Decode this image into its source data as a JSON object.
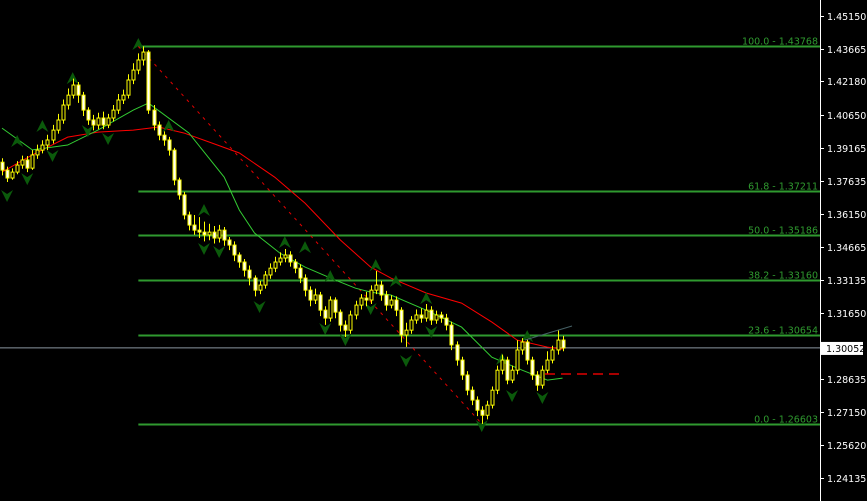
{
  "chart_data": {
    "type": "candlestick",
    "ylim": [
      1.2345,
      1.459
    ],
    "y_ticks": [
      "1.45150",
      "1.43665",
      "1.42180",
      "1.40650",
      "1.39165",
      "1.37635",
      "1.36150",
      "1.34665",
      "1.33135",
      "1.31650",
      "1.28635",
      "1.27150",
      "1.25620",
      "1.24135"
    ],
    "current_price": "1.30052",
    "colors": {
      "background": "#000000",
      "candle": "#ffff00",
      "bear_body": "#ffffff",
      "fast_ma": "#33cc33",
      "slow_ma": "#ff0000",
      "fib": "#2f9a2f",
      "fractal": "#0b5a0b",
      "bid_line": "#8a96a0"
    },
    "first_open": 1.385,
    "close": [
      1.3814,
      1.3778,
      1.3805,
      1.3837,
      1.386,
      1.3823,
      1.3883,
      1.3905,
      1.3928,
      1.3951,
      1.3996,
      1.4042,
      1.411,
      1.4155,
      1.4201,
      1.4155,
      1.4087,
      1.4042,
      1.4019,
      1.4051,
      1.4019,
      1.4051,
      1.4087,
      1.4133,
      1.4155,
      1.4224,
      1.4269,
      1.4315,
      1.4351,
      1.4087,
      1.4019,
      1.3973,
      1.3951,
      1.3905,
      1.3769,
      1.3701,
      1.361,
      1.3564,
      1.3541,
      1.3532,
      1.3519,
      1.3532,
      1.3505,
      1.3541,
      1.3496,
      1.3473,
      1.3428,
      1.3396,
      1.3359,
      1.3323,
      1.3268,
      1.3291,
      1.3337,
      1.3368,
      1.3396,
      1.3414,
      1.3428,
      1.3396,
      1.3368,
      1.3323,
      1.3268,
      1.3223,
      1.3246,
      1.3177,
      1.3141,
      1.3223,
      1.3168,
      1.3109,
      1.3086,
      1.3155,
      1.32,
      1.3232,
      1.3223,
      1.3268,
      1.3291,
      1.3246,
      1.32,
      1.3223,
      1.3177,
      1.3064,
      1.3086,
      1.3132,
      1.3155,
      1.3141,
      1.3177,
      1.3132,
      1.3155,
      1.3141,
      1.3109,
      1.3019,
      1.295,
      1.2882,
      1.2813,
      1.2768,
      1.2722,
      1.2699,
      1.2745,
      1.2813,
      1.2904,
      1.295,
      1.2859,
      1.2904,
      1.2996,
      1.3032,
      1.295,
      1.2882,
      1.2836,
      1.2904,
      1.295,
      1.2996,
      1.3041,
      1.3005
    ],
    "high": [
      1.3868,
      1.383,
      1.3822,
      1.3855,
      1.388,
      1.3878,
      1.3905,
      1.393,
      1.395,
      1.3975,
      1.402,
      1.407,
      1.4135,
      1.4185,
      1.423,
      1.4215,
      1.417,
      1.41,
      1.4065,
      1.4075,
      1.408,
      1.407,
      1.411,
      1.416,
      1.418,
      1.425,
      1.43,
      1.4345,
      1.4377,
      1.436,
      1.411,
      1.4035,
      1.399,
      1.3965,
      1.3915,
      1.378,
      1.3715,
      1.3625,
      1.361,
      1.36,
      1.358,
      1.357,
      1.356,
      1.3565,
      1.3555,
      1.351,
      1.349,
      1.344,
      1.341,
      1.338,
      1.3335,
      1.331,
      1.3355,
      1.339,
      1.342,
      1.344,
      1.3455,
      1.3445,
      1.341,
      1.3385,
      1.334,
      1.3285,
      1.3275,
      1.326,
      1.3195,
      1.324,
      1.3235,
      1.318,
      1.313,
      1.3175,
      1.322,
      1.325,
      1.326,
      1.329,
      1.3355,
      1.331,
      1.3265,
      1.3245,
      1.324,
      1.319,
      1.312,
      1.315,
      1.318,
      1.3185,
      1.3205,
      1.3195,
      1.3175,
      1.317,
      1.316,
      1.3125,
      1.3035,
      1.2965,
      1.29,
      1.283,
      1.2785,
      1.274,
      1.2765,
      1.283,
      1.2925,
      1.2975,
      1.2965,
      1.2925,
      1.304,
      1.305,
      1.3045,
      1.2965,
      1.29,
      1.2925,
      1.299,
      1.3015,
      1.3085,
      1.306
    ],
    "low": [
      1.379,
      1.376,
      1.377,
      1.3795,
      1.382,
      1.3805,
      1.3815,
      1.3865,
      1.389,
      1.3905,
      1.3935,
      1.398,
      1.4025,
      1.409,
      1.414,
      1.412,
      1.406,
      1.402,
      1.3995,
      1.4,
      1.4,
      1.4005,
      1.4035,
      1.407,
      1.4115,
      1.414,
      1.4205,
      1.425,
      1.429,
      1.407,
      1.3995,
      1.395,
      1.3925,
      1.388,
      1.3745,
      1.368,
      1.359,
      1.354,
      1.352,
      1.3505,
      1.349,
      1.3495,
      1.348,
      1.3485,
      1.347,
      1.345,
      1.34,
      1.337,
      1.333,
      1.329,
      1.324,
      1.325,
      1.3275,
      1.332,
      1.335,
      1.338,
      1.3395,
      1.3375,
      1.3345,
      1.33,
      1.324,
      1.3195,
      1.3205,
      1.315,
      1.311,
      1.3125,
      1.314,
      1.308,
      1.3055,
      1.307,
      1.3135,
      1.318,
      1.3195,
      1.3205,
      1.325,
      1.322,
      1.3175,
      1.3185,
      1.315,
      1.303,
      1.301,
      1.307,
      1.3115,
      1.312,
      1.3125,
      1.311,
      1.3115,
      1.312,
      1.3085,
      1.2995,
      1.2925,
      1.286,
      1.279,
      1.2745,
      1.2695,
      1.266,
      1.268,
      1.273,
      1.2795,
      1.2885,
      1.284,
      1.2845,
      1.2885,
      1.2975,
      1.293,
      1.286,
      1.281,
      1.282,
      1.2885,
      1.2935,
      1.2975,
      1.299
    ],
    "fast_ma": [
      [
        0,
        1.4005
      ],
      [
        6,
        1.3906
      ],
      [
        13,
        1.3928
      ],
      [
        19,
        1.3996
      ],
      [
        26,
        1.4087
      ],
      [
        29,
        1.4119
      ],
      [
        37,
        1.3983
      ],
      [
        44,
        1.3782
      ],
      [
        47,
        1.3632
      ],
      [
        50,
        1.3528
      ],
      [
        55,
        1.3437
      ],
      [
        60,
        1.3373
      ],
      [
        66,
        1.3314
      ],
      [
        70,
        1.3277
      ],
      [
        73,
        1.3259
      ],
      [
        77,
        1.3246
      ],
      [
        84,
        1.3177
      ],
      [
        91,
        1.31
      ],
      [
        97,
        1.2963
      ],
      [
        103,
        1.2904
      ],
      [
        108,
        1.2859
      ],
      [
        111,
        1.2868
      ]
    ],
    "slow_ma": [
      [
        0,
        1.3805
      ],
      [
        6,
        1.3883
      ],
      [
        13,
        1.3964
      ],
      [
        19,
        1.3987
      ],
      [
        26,
        1.3996
      ],
      [
        31,
        1.401
      ],
      [
        36,
        1.3983
      ],
      [
        41,
        1.3942
      ],
      [
        47,
        1.3892
      ],
      [
        54,
        1.3782
      ],
      [
        60,
        1.3664
      ],
      [
        67,
        1.3496
      ],
      [
        73,
        1.3373
      ],
      [
        77,
        1.3323
      ],
      [
        84,
        1.3255
      ],
      [
        91,
        1.3209
      ],
      [
        97,
        1.3123
      ],
      [
        102,
        1.3041
      ],
      [
        108,
        1.3009
      ],
      [
        111,
        1.3
      ]
    ],
    "fractals_up": [
      [
        3,
        1.3974
      ],
      [
        8,
        1.4042
      ],
      [
        14,
        1.426
      ],
      [
        27,
        1.4415
      ],
      [
        33,
        1.4042
      ],
      [
        40,
        1.366
      ],
      [
        56,
        1.3514
      ],
      [
        60,
        1.3491
      ],
      [
        65,
        1.3359
      ],
      [
        74,
        1.3409
      ],
      [
        78,
        1.3337
      ],
      [
        84,
        1.3259
      ],
      [
        99,
        1.2982
      ],
      [
        104,
        1.3086
      ]
    ],
    "fractals_down": [
      [
        1,
        1.3669
      ],
      [
        5,
        1.3746
      ],
      [
        10,
        1.3851
      ],
      [
        17,
        1.3964
      ],
      [
        21,
        1.3928
      ],
      [
        40,
        1.3428
      ],
      [
        43,
        1.3414
      ],
      [
        51,
        1.3164
      ],
      [
        64,
        1.3064
      ],
      [
        68,
        1.3014
      ],
      [
        73,
        1.3155
      ],
      [
        80,
        1.2918
      ],
      [
        85,
        1.305
      ],
      [
        95,
        1.2622
      ],
      [
        101,
        1.2759
      ],
      [
        107,
        1.275
      ]
    ],
    "fibonacci": [
      {
        "label": "100.0 - 1.43768",
        "price": 1.43768
      },
      {
        "label": "61.8 - 1.37211",
        "price": 1.37211
      },
      {
        "label": "50.0 - 1.35186",
        "price": 1.35186
      },
      {
        "label": "38.2 - 1.33160",
        "price": 1.3316
      },
      {
        "label": "23.6 - 1.30654",
        "price": 1.30654
      },
      {
        "label": "0.0 - 1.26603",
        "price": 1.26603
      }
    ],
    "fib_start_index": 27,
    "fib_trendline": [
      [
        27,
        1.43768
      ],
      [
        95,
        1.26603
      ]
    ]
  }
}
